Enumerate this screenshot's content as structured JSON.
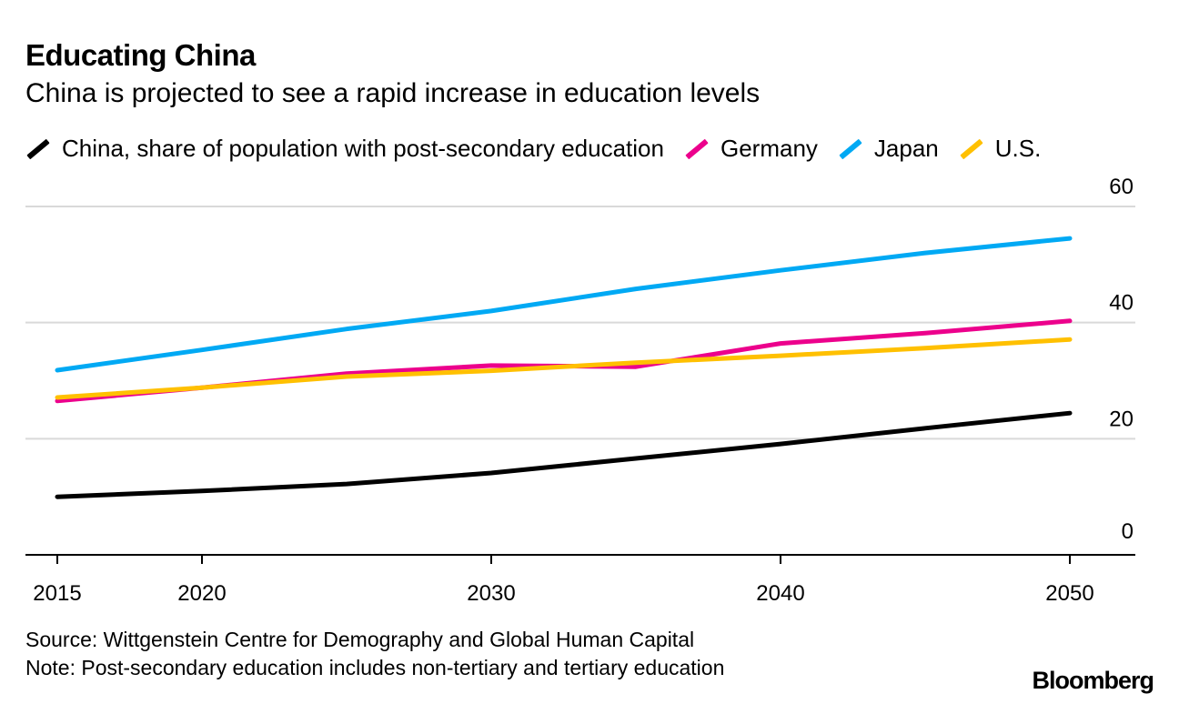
{
  "chart_data": {
    "type": "line",
    "title": "Educating China",
    "subtitle": "China is projected to see a rapid increase in education levels",
    "x": [
      2015,
      2020,
      2025,
      2030,
      2035,
      2040,
      2045,
      2050
    ],
    "x_ticks": [
      2015,
      2020,
      2030,
      2040,
      2050
    ],
    "x_tick_labels": [
      "2015",
      "2020",
      "2030",
      "2040",
      "2050"
    ],
    "y_ticks": [
      0,
      20,
      40,
      60
    ],
    "y_tick_labels": [
      "0",
      "20",
      "40",
      "60"
    ],
    "ylim": [
      0,
      60
    ],
    "grid": true,
    "legend_position": "top-left",
    "series": [
      {
        "name": "China, share of population with post-secondary education",
        "color": "#000000",
        "values": [
          10.0,
          11.0,
          12.2,
          14.1,
          16.6,
          19.1,
          21.8,
          24.4
        ]
      },
      {
        "name": "Germany",
        "color": "#ec008c",
        "values": [
          26.5,
          28.8,
          31.2,
          32.6,
          32.4,
          36.4,
          38.2,
          40.3
        ]
      },
      {
        "name": "Japan",
        "color": "#00a9f4",
        "values": [
          31.8,
          35.3,
          38.9,
          42.0,
          45.8,
          49.0,
          52.0,
          54.5
        ]
      },
      {
        "name": "U.S.",
        "color": "#ffc000",
        "values": [
          27.1,
          28.8,
          30.7,
          31.7,
          33.1,
          34.3,
          35.6,
          37.1
        ]
      }
    ]
  },
  "footer": {
    "source": "Source: Wittgenstein Centre for Demography and Global Human Capital",
    "note": "Note: Post-secondary education includes non-tertiary and tertiary education",
    "logo": "Bloomberg"
  }
}
